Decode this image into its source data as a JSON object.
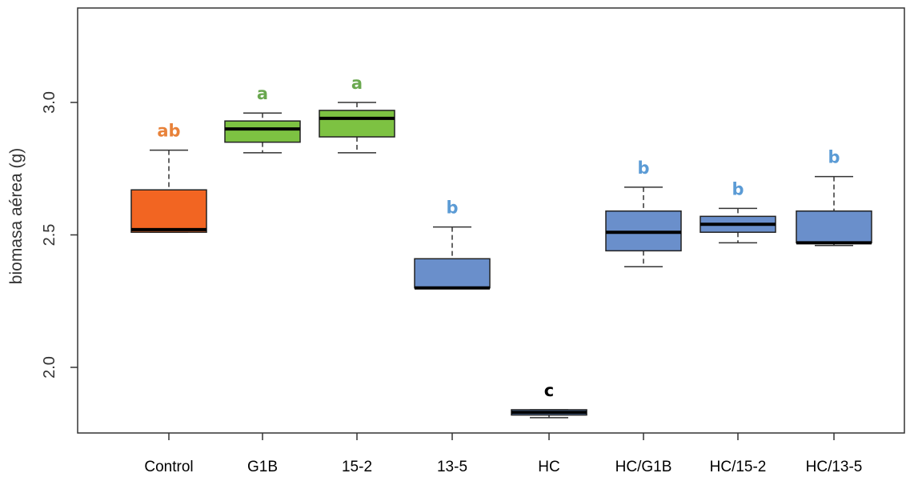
{
  "chart_data": {
    "type": "boxplot",
    "title": "",
    "xlabel": "",
    "ylabel": "biomasa aérea (g)",
    "ylim": [
      1.75,
      3.35
    ],
    "yticks": [
      2.0,
      2.5,
      3.0
    ],
    "ytick_labels": [
      "2.0",
      "2.5",
      "3.0"
    ],
    "grid": false,
    "legend": "none",
    "categories": [
      "Control",
      "G1B",
      "15-2",
      "13-5",
      "HC",
      "HC/G1B",
      "HC/15-2",
      "HC/13-5"
    ],
    "boxes": [
      {
        "min": 2.51,
        "q1": 2.51,
        "median": 2.52,
        "q3": 2.67,
        "max": 2.82
      },
      {
        "min": 2.81,
        "q1": 2.85,
        "median": 2.9,
        "q3": 2.93,
        "max": 2.96
      },
      {
        "min": 2.81,
        "q1": 2.87,
        "median": 2.94,
        "q3": 2.97,
        "max": 3.0
      },
      {
        "min": 2.3,
        "q1": 2.3,
        "median": 2.3,
        "q3": 2.41,
        "max": 2.53
      },
      {
        "min": 1.81,
        "q1": 1.82,
        "median": 1.83,
        "q3": 1.84,
        "max": 1.84
      },
      {
        "min": 2.38,
        "q1": 2.44,
        "median": 2.51,
        "q3": 2.59,
        "max": 2.68
      },
      {
        "min": 2.47,
        "q1": 2.51,
        "median": 2.54,
        "q3": 2.57,
        "max": 2.6
      },
      {
        "min": 2.46,
        "q1": 2.47,
        "median": 2.47,
        "q3": 2.59,
        "max": 2.72
      }
    ],
    "box_colors": [
      "#f26522",
      "#7dc242",
      "#7dc242",
      "#6a8fcb",
      "#6a8fcb",
      "#6a8fcb",
      "#6a8fcb",
      "#6a8fcb"
    ],
    "significance_letters": [
      "ab",
      "a",
      "a",
      "b",
      "c",
      "b",
      "b",
      "b"
    ],
    "letter_colors": [
      "#e8823a",
      "#6aa84f",
      "#6aa84f",
      "#5b9bd5",
      "#000000",
      "#5b9bd5",
      "#5b9bd5",
      "#5b9bd5"
    ]
  }
}
